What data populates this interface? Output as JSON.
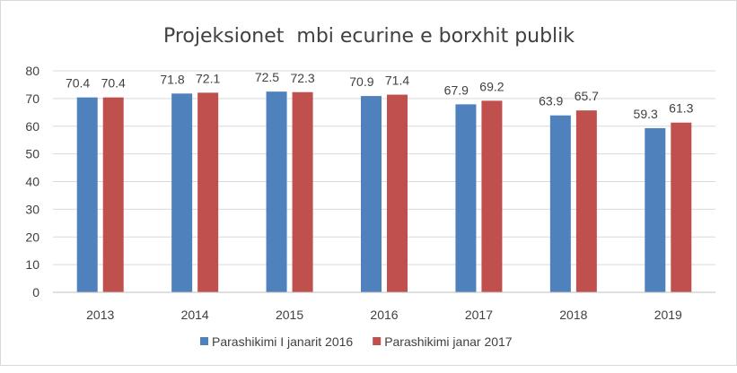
{
  "chart_data": {
    "type": "bar",
    "title": "Projeksionet  mbi ecurine e borxhit publik",
    "xlabel": "",
    "ylabel": "",
    "categories": [
      "2013",
      "2014",
      "2015",
      "2016",
      "2017",
      "2018",
      "2019"
    ],
    "series": [
      {
        "name": "Parashikimi I janarit 2016",
        "color": "#4f81bd",
        "values": [
          70.4,
          71.8,
          72.5,
          70.9,
          67.9,
          63.9,
          59.3
        ],
        "labels": [
          "70.4",
          "71.8",
          "72.5",
          "70.9",
          "67.9",
          "63.9",
          "59.3"
        ]
      },
      {
        "name": "Parashikimi janar 2017",
        "color": "#c0504d",
        "values": [
          70.4,
          72.1,
          72.3,
          71.4,
          69.2,
          65.7,
          61.3
        ],
        "labels": [
          "70.4",
          "72.1",
          "72.3",
          "71.4",
          "69.2",
          "65.7",
          "61.3"
        ]
      }
    ],
    "ylim": [
      0,
      80
    ],
    "yticks": [
      "0",
      "10",
      "20",
      "30",
      "40",
      "50",
      "60",
      "70",
      "80"
    ],
    "grid": true,
    "legend_position": "bottom"
  }
}
